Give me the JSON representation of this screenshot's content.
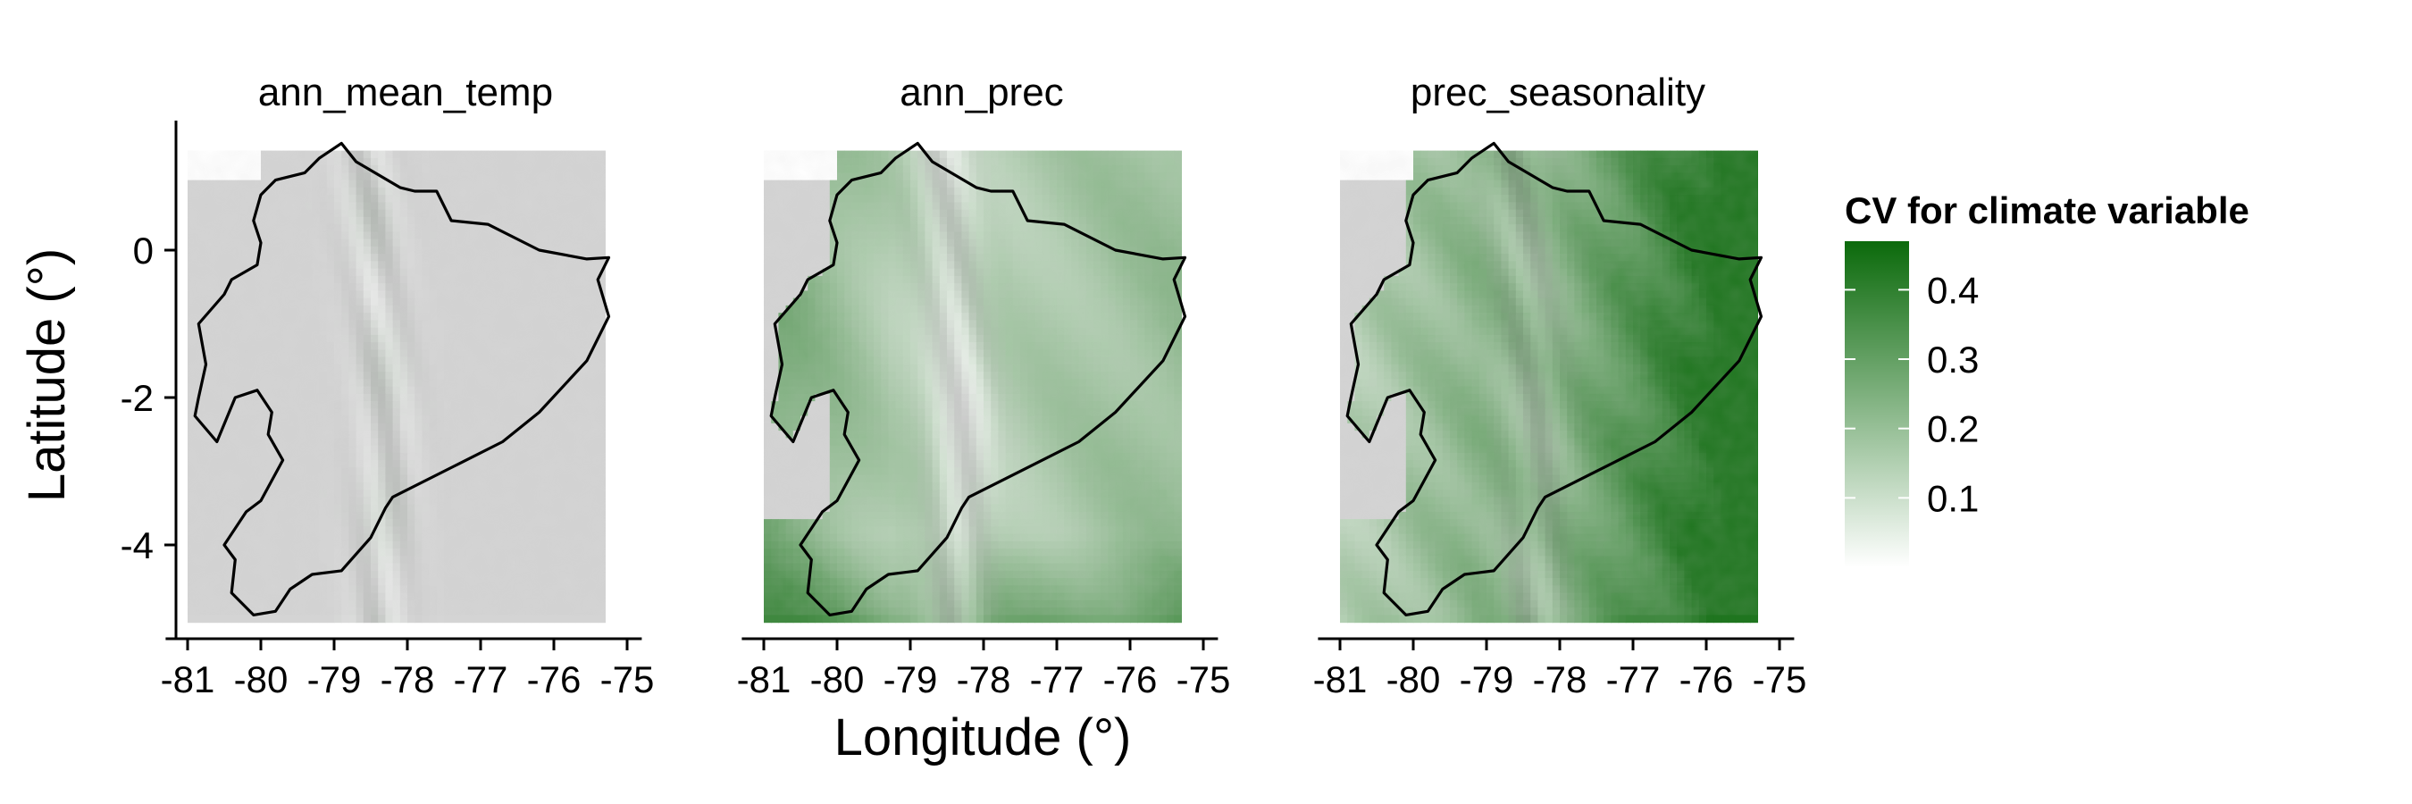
{
  "chart_data": {
    "type": "heatmap",
    "description_free": true,
    "panels": [
      {
        "title": "ann_mean_temp",
        "cv_mean": 0.02,
        "cv_east": 0.0,
        "cv_coast": 0.0,
        "cv_andes_ridge": 0.06
      },
      {
        "title": "ann_prec",
        "cv_mean": 0.22,
        "cv_east": 0.26,
        "cv_coast": 0.36,
        "cv_andes_ridge": 0.12
      },
      {
        "title": "prec_seasonality",
        "cv_mean": 0.33,
        "cv_east": 0.44,
        "cv_coast": 0.15,
        "cv_andes_ridge": 0.22
      }
    ],
    "xlabel": "Longitude (°)",
    "ylabel": "Latitude (°)",
    "xlim": [
      -81.4,
      -74.8
    ],
    "ylim": [
      -5.25,
      1.75
    ],
    "x_ticks": [
      -81,
      -80,
      -79,
      -78,
      -77,
      -76,
      -75
    ],
    "x_tick_labels": [
      "-81",
      "-80",
      "-79",
      "-78",
      "-77",
      "-76",
      "-75"
    ],
    "y_ticks": [
      0,
      -2,
      -4
    ],
    "y_tick_labels": [
      "0",
      "-2",
      "-4"
    ],
    "raster_extent": {
      "lon": [
        -81,
        -75.3
      ],
      "lat": [
        -4.95,
        1.35
      ]
    },
    "coastline_lonlat": [
      [
        -80.0,
        0.75
      ],
      [
        -79.8,
        0.95
      ],
      [
        -79.4,
        1.05
      ],
      [
        -79.2,
        1.25
      ],
      [
        -78.9,
        1.45
      ],
      [
        -78.7,
        1.2
      ],
      [
        -78.1,
        0.85
      ],
      [
        -77.9,
        0.8
      ],
      [
        -77.6,
        0.8
      ],
      [
        -77.4,
        0.4
      ],
      [
        -76.9,
        0.35
      ],
      [
        -76.2,
        0.0
      ],
      [
        -75.55,
        -0.12
      ],
      [
        -75.25,
        -0.1
      ],
      [
        -75.4,
        -0.4
      ],
      [
        -75.25,
        -0.9
      ],
      [
        -75.55,
        -1.5
      ],
      [
        -76.2,
        -2.2
      ],
      [
        -76.7,
        -2.6
      ],
      [
        -77.3,
        -2.9
      ],
      [
        -78.2,
        -3.35
      ],
      [
        -78.3,
        -3.5
      ],
      [
        -78.5,
        -3.9
      ],
      [
        -78.9,
        -4.35
      ],
      [
        -79.3,
        -4.4
      ],
      [
        -79.6,
        -4.6
      ],
      [
        -79.8,
        -4.9
      ],
      [
        -80.1,
        -4.95
      ],
      [
        -80.4,
        -4.65
      ],
      [
        -80.35,
        -4.2
      ],
      [
        -80.5,
        -4.0
      ],
      [
        -80.2,
        -3.55
      ],
      [
        -80.0,
        -3.4
      ],
      [
        -79.7,
        -2.85
      ],
      [
        -79.9,
        -2.5
      ],
      [
        -79.85,
        -2.2
      ],
      [
        -80.05,
        -1.9
      ],
      [
        -80.35,
        -2.0
      ],
      [
        -80.6,
        -2.6
      ],
      [
        -80.9,
        -2.25
      ],
      [
        -80.85,
        -2.0
      ],
      [
        -80.75,
        -1.55
      ],
      [
        -80.85,
        -1.0
      ],
      [
        -80.5,
        -0.6
      ],
      [
        -80.4,
        -0.4
      ],
      [
        -80.05,
        -0.2
      ],
      [
        -80.0,
        0.1
      ],
      [
        -80.1,
        0.4
      ],
      [
        -80.0,
        0.75
      ]
    ],
    "legend": {
      "title": "CV for climate variable",
      "labels": [
        "0.4",
        "0.3",
        "0.2",
        "0.1"
      ],
      "values": [
        0.4,
        0.3,
        0.2,
        0.1
      ],
      "range": [
        0.0,
        0.47
      ],
      "color_low": "#ffffff",
      "color_high": "#0b6a0b",
      "position": "right"
    },
    "colors": {
      "background_gray": "#d4d4d4",
      "shade_light": "#ececec",
      "shade_dark": "#a6a6a6",
      "outline": "#000000"
    },
    "grid": false
  }
}
